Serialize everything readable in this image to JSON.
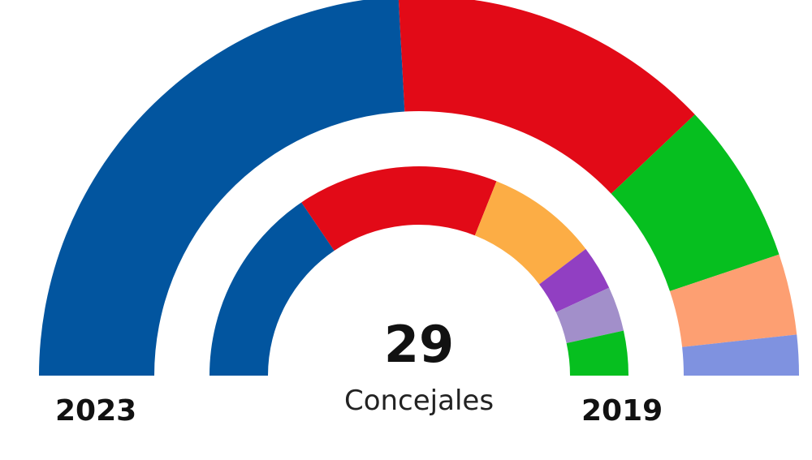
{
  "chart_data": {
    "type": "pie",
    "subtype": "hemicycle",
    "total": "29",
    "total_label": "Concejales",
    "rings": [
      {
        "label": "2023",
        "position": "outer",
        "seats": [
          14,
          8,
          4,
          2,
          1
        ],
        "colors": [
          "#02559f",
          "#e20a17",
          "#06bf1f",
          "#fd9f72",
          "#7f92e0"
        ]
      },
      {
        "label": "2019",
        "position": "inner",
        "seats": [
          9,
          9,
          5,
          2,
          2,
          2
        ],
        "colors": [
          "#02559f",
          "#e20a17",
          "#fcad45",
          "#913fc2",
          "#a28fca",
          "#06bf1f"
        ]
      }
    ]
  }
}
